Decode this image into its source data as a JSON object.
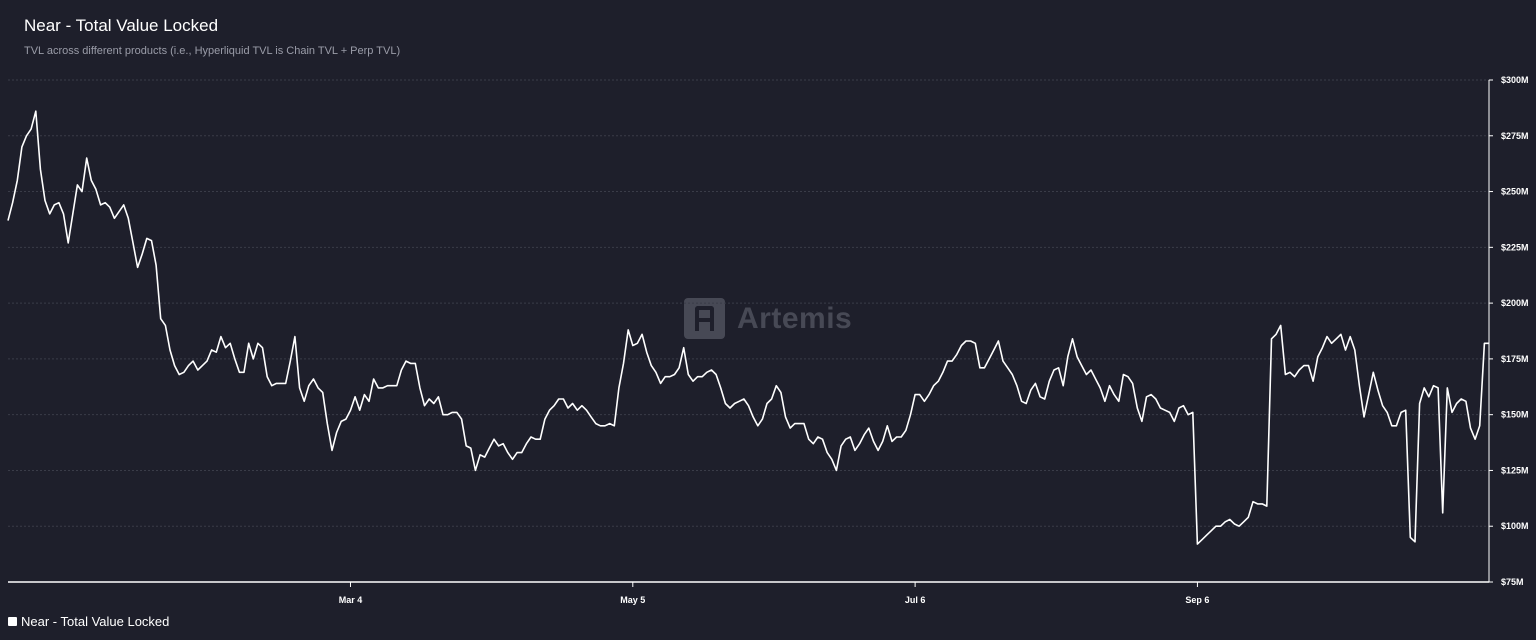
{
  "header": {
    "title": "Near - Total Value Locked",
    "subtitle": "TVL across different products (i.e., Hyperliquid TVL is Chain TVL + Perp TVL)"
  },
  "watermark": {
    "text": "Artemis",
    "icon": "artemis-logo-icon"
  },
  "legend": {
    "label": "Near - Total Value Locked",
    "color": "#ffffff"
  },
  "colors": {
    "background": "#1e1f2b",
    "line": "#ffffff",
    "grid": "#3a3c48",
    "axis_text": "#ffffff"
  },
  "chart_data": {
    "type": "line",
    "title": "Near - Total Value Locked",
    "subtitle": "TVL across different products (i.e., Hyperliquid TVL is Chain TVL + Perp TVL)",
    "ylim": [
      75,
      300
    ],
    "y_unit": "$M",
    "y_ticks": [
      "$300M",
      "$275M",
      "$250M",
      "$225M",
      "$200M",
      "$175M",
      "$150M",
      "$125M",
      "$100M",
      "$75M"
    ],
    "y_tick_values": [
      300,
      275,
      250,
      225,
      200,
      175,
      150,
      125,
      100,
      75
    ],
    "x_ticks": [
      "Mar 4",
      "May 5",
      "Jul 6",
      "Sep 6"
    ],
    "x_tick_index": [
      74,
      135,
      196,
      257
    ],
    "grid": true,
    "legend_position": "bottom-left",
    "series": [
      {
        "name": "Near - Total Value Locked",
        "values": [
          237,
          245,
          255,
          270,
          275,
          278,
          286,
          260,
          246,
          240,
          244,
          245,
          240,
          227,
          240,
          253,
          250,
          265,
          255,
          251,
          244,
          245,
          243,
          238,
          241,
          244,
          238,
          227,
          216,
          222,
          229,
          228,
          217,
          193,
          190,
          179,
          172,
          168,
          169,
          172,
          174,
          170,
          172,
          174,
          179,
          178,
          185,
          180,
          182,
          175,
          169,
          169,
          182,
          175,
          182,
          180,
          167,
          163,
          164,
          164,
          164,
          174,
          185,
          162,
          156,
          163,
          166,
          162,
          160,
          146,
          134,
          142,
          147,
          148,
          152,
          158,
          152,
          159,
          156,
          166,
          162,
          162,
          163,
          163,
          163,
          170,
          174,
          173,
          173,
          162,
          154,
          157,
          155,
          158,
          150,
          150,
          151,
          151,
          148,
          136,
          135,
          125,
          132,
          131,
          135,
          139,
          136,
          137,
          133,
          130,
          133,
          133,
          137,
          140,
          139,
          139,
          148,
          152,
          154,
          157,
          157,
          153,
          155,
          152,
          154,
          152,
          149,
          146,
          145,
          145,
          146,
          145,
          162,
          173,
          188,
          181,
          182,
          186,
          178,
          172,
          169,
          164,
          167,
          167,
          168,
          171,
          180,
          168,
          165,
          167,
          167,
          169,
          170,
          168,
          162,
          155,
          153,
          155,
          156,
          157,
          154,
          149,
          145,
          148,
          155,
          157,
          163,
          160,
          149,
          144,
          146,
          146,
          146,
          139,
          137,
          140,
          139,
          133,
          130,
          125,
          136,
          139,
          140,
          134,
          137,
          141,
          144,
          138,
          134,
          138,
          145,
          138,
          140,
          140,
          143,
          150,
          159,
          159,
          156,
          159,
          163,
          165,
          169,
          174,
          174,
          177,
          181,
          183,
          183,
          182,
          171,
          171,
          175,
          179,
          183,
          174,
          171,
          168,
          163,
          156,
          155,
          161,
          164,
          158,
          157,
          165,
          170,
          171,
          163,
          176,
          184,
          176,
          172,
          168,
          170,
          166,
          162,
          156,
          163,
          159,
          156,
          168,
          167,
          164,
          153,
          147,
          158,
          159,
          157,
          153,
          152,
          151,
          147,
          153,
          154,
          150,
          151,
          92,
          94,
          96,
          98,
          100,
          100,
          102,
          103,
          101,
          100,
          102,
          104,
          111,
          110,
          110,
          109,
          184,
          186,
          190,
          168,
          169,
          167,
          170,
          172,
          172,
          165,
          176,
          180,
          185,
          182,
          184,
          186,
          179,
          185,
          179,
          163,
          149,
          159,
          169,
          161,
          154,
          151,
          145,
          145,
          151,
          152,
          95,
          93,
          155,
          162,
          158,
          163,
          162,
          106,
          162,
          151,
          155,
          157,
          156,
          144,
          139,
          145,
          182,
          182
        ]
      }
    ]
  }
}
